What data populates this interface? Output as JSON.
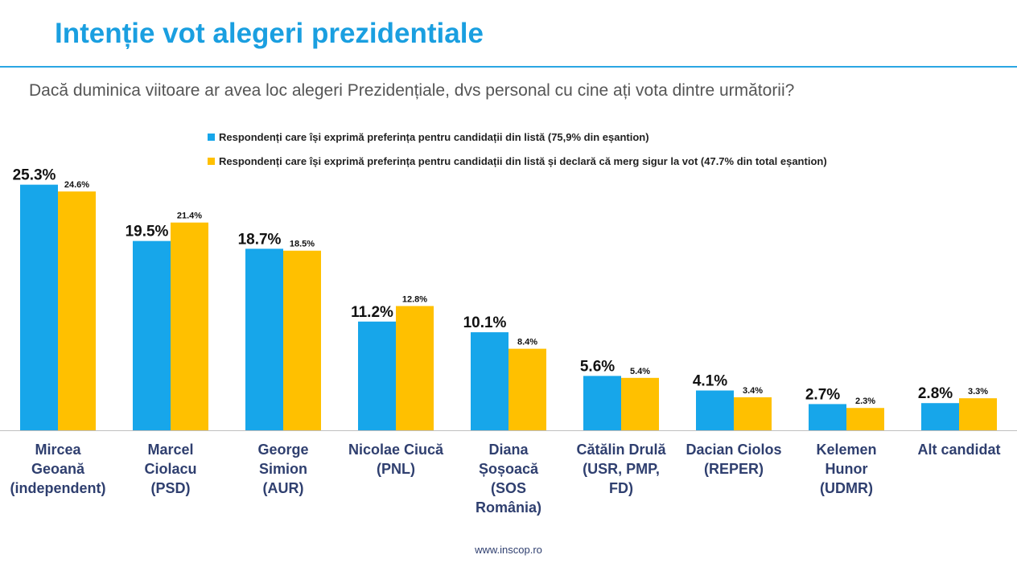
{
  "header": {
    "title": "Intenție vot alegeri prezidentiale",
    "question": "Dacă duminica viitoare ar avea loc alegeri Prezidențiale, dvs personal cu cine ați vota dintre următorii?"
  },
  "footer": {
    "url": "www.inscop.ro"
  },
  "colors": {
    "series1": "#17a6ea",
    "series2": "#ffc000",
    "title": "#1a9fe0",
    "category_text": "#2f3f6f"
  },
  "chart_data": {
    "type": "bar",
    "categories": [
      [
        "Mircea",
        "Geoană",
        "(independent)"
      ],
      [
        "Marcel",
        "Ciolacu",
        "(PSD)"
      ],
      [
        "George",
        "Simion",
        "(AUR)"
      ],
      [
        "Nicolae Ciucă",
        "(PNL)"
      ],
      [
        "Diana",
        "Șoșoacă",
        "(SOS",
        "România)"
      ],
      [
        "Cătălin Drulă",
        "(USR, PMP,",
        "FD)"
      ],
      [
        "Dacian Ciolos",
        "(REPER)"
      ],
      [
        "Kelemen",
        "Hunor",
        "(UDMR)"
      ],
      [
        "Alt candidat"
      ]
    ],
    "series": [
      {
        "name": "Respondenți care își exprimă preferința pentru candidații din listă (75,9% din eșantion)",
        "values": [
          25.3,
          19.5,
          18.7,
          11.2,
          10.1,
          5.6,
          4.1,
          2.7,
          2.8
        ],
        "labels": [
          "25.3%",
          "19.5%",
          "18.7%",
          "11.2%",
          "10.1%",
          "5.6%",
          "4.1%",
          "2.7%",
          "2.8%"
        ]
      },
      {
        "name": "Respondenți care își exprimă preferința pentru candidații din listă și declară că merg sigur la vot (47.7% din total eșantion)",
        "values": [
          24.6,
          21.4,
          18.5,
          12.8,
          8.4,
          5.4,
          3.4,
          2.3,
          3.3
        ],
        "labels": [
          "24.6%",
          "21.4%",
          "18.5%",
          "12.8%",
          "8.4%",
          "5.4%",
          "3.4%",
          "2.3%",
          "3.3%"
        ]
      }
    ],
    "ylim": [
      0,
      30
    ],
    "legend_position": "top"
  }
}
